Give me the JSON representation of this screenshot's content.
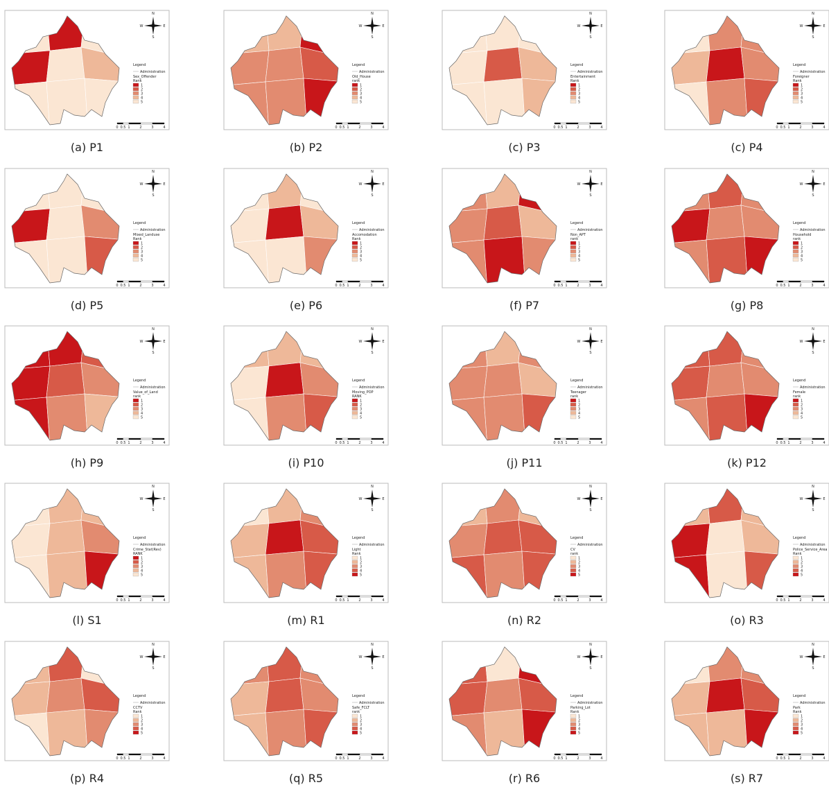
{
  "common": {
    "legend_title": "Legend",
    "boundary": "Administration",
    "classes": [
      1,
      2,
      3,
      4,
      5
    ],
    "scale": [
      0,
      0.5,
      1,
      2,
      3,
      4
    ],
    "compass": [
      "N",
      "S",
      "W",
      "E"
    ],
    "palette": [
      "#c8161a",
      "#d75a48",
      "#e28b70",
      "#eeb899",
      "#fbe6d3"
    ]
  },
  "panels": [
    {
      "caption": "(a)  P1",
      "layer": "Sex_Offender",
      "rank_label": "Rank",
      "reversed": false,
      "zones": [
        5,
        1,
        5,
        1,
        5,
        4,
        5,
        5,
        5
      ]
    },
    {
      "caption": "(b)  P2",
      "layer": "Old_House",
      "rank_label": "rank",
      "reversed": false,
      "zones": [
        4,
        4,
        1,
        3,
        3,
        2,
        3,
        3,
        1
      ]
    },
    {
      "caption": "(c)  P3",
      "layer": "Entertainment",
      "rank_label": "Rank",
      "reversed": false,
      "zones": [
        5,
        5,
        5,
        5,
        2,
        4,
        5,
        5,
        4
      ]
    },
    {
      "caption": "(c)  P4",
      "layer": "Foreigner",
      "rank_label": "Rank",
      "reversed": false,
      "zones": [
        5,
        3,
        3,
        4,
        1,
        3,
        5,
        3,
        2
      ]
    },
    {
      "caption": "(d)  P5",
      "layer": "Mixed_Landuse",
      "rank_label": "Rank",
      "reversed": false,
      "zones": [
        5,
        5,
        5,
        1,
        5,
        3,
        5,
        5,
        2
      ]
    },
    {
      "caption": "(e)  P6",
      "layer": "Accomodation",
      "rank_label": "Rank",
      "reversed": false,
      "zones": [
        5,
        4,
        5,
        5,
        1,
        4,
        5,
        5,
        3
      ]
    },
    {
      "caption": "(f)  P7",
      "layer": "Non_APT",
      "rank_label": "rank",
      "reversed": false,
      "zones": [
        3,
        4,
        1,
        3,
        2,
        4,
        3,
        1,
        3
      ]
    },
    {
      "caption": "(g)  P8",
      "layer": "Household",
      "rank_label": "rank",
      "reversed": false,
      "zones": [
        3,
        2,
        3,
        1,
        3,
        3,
        3,
        2,
        1
      ]
    },
    {
      "caption": "(h)  P9",
      "layer": "Value_of_Land",
      "rank_label": "rank",
      "reversed": false,
      "zones": [
        1,
        1,
        2,
        1,
        2,
        3,
        1,
        3,
        4
      ]
    },
    {
      "caption": "(i)  P10",
      "layer": "Moving_POP",
      "rank_label": "RANK",
      "reversed": false,
      "zones": [
        4,
        4,
        4,
        5,
        1,
        3,
        5,
        3,
        2
      ]
    },
    {
      "caption": "(j)  P11",
      "layer": "Teenager",
      "rank_label": "rank",
      "reversed": false,
      "zones": [
        3,
        4,
        3,
        3,
        3,
        4,
        3,
        3,
        2
      ]
    },
    {
      "caption": "(k)  P12",
      "layer": "Female",
      "rank_label": "rank",
      "reversed": false,
      "zones": [
        2,
        2,
        3,
        2,
        3,
        3,
        3,
        2,
        1
      ]
    },
    {
      "caption": "(l)  S1",
      "layer": "Crime_Stat(Rev)",
      "rank_label": "RANK",
      "reversed": false,
      "zones": [
        5,
        4,
        4,
        5,
        4,
        3,
        5,
        4,
        1
      ]
    },
    {
      "caption": "(m)  R1",
      "layer": "Light",
      "rank_label": "Rank",
      "reversed": true,
      "zones": [
        1,
        2,
        3,
        2,
        5,
        4,
        2,
        3,
        4
      ]
    },
    {
      "caption": "(n)  R2",
      "layer": "CV",
      "rank_label": "rank",
      "reversed": true,
      "zones": [
        2,
        3,
        2,
        3,
        4,
        4,
        4,
        3,
        4
      ]
    },
    {
      "caption": "(o)  R3",
      "layer": "Police_Service_Area",
      "rank_label": "Rank",
      "reversed": true,
      "zones": [
        2,
        4,
        2,
        5,
        1,
        2,
        5,
        1,
        4
      ]
    },
    {
      "caption": "(p)  R4",
      "layer": "CCTV",
      "rank_label": "Rank",
      "reversed": true,
      "zones": [
        2,
        4,
        1,
        2,
        3,
        4,
        1,
        2,
        3
      ]
    },
    {
      "caption": "(q)  R5",
      "layer": "Safe_FCLT",
      "rank_label": "rank",
      "reversed": true,
      "zones": [
        3,
        4,
        3,
        2,
        4,
        3,
        2,
        3,
        4
      ]
    },
    {
      "caption": "(r)  R6",
      "layer": "Parking_Lot",
      "rank_label": "Rank",
      "reversed": true,
      "zones": [
        4,
        1,
        5,
        4,
        3,
        4,
        3,
        2,
        5
      ]
    },
    {
      "caption": "(s)  R7",
      "layer": "Park",
      "rank_label": "Rank",
      "reversed": true,
      "zones": [
        1,
        3,
        3,
        2,
        5,
        4,
        2,
        2,
        5
      ]
    }
  ]
}
